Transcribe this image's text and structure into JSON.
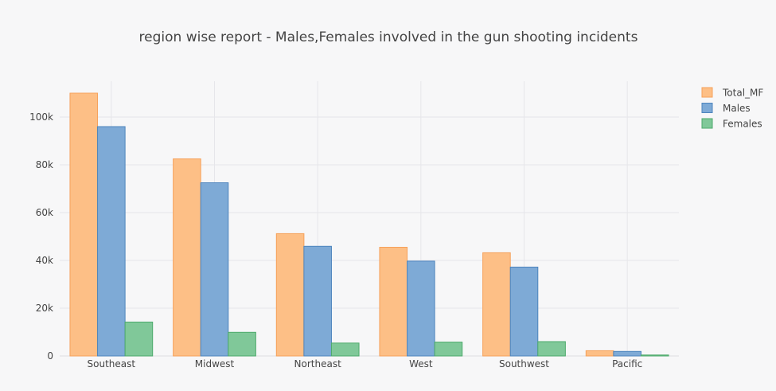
{
  "colors": {
    "background": "#f7f7f8",
    "grid": "#e6e6ea",
    "text": "#444444",
    "series": [
      "#fdbf86",
      "#7eaad6",
      "#80c899"
    ],
    "series_stroke": [
      "#f6a15a",
      "#4d84bd",
      "#4daa6b"
    ]
  },
  "chart_data": {
    "type": "bar",
    "title": "region wise report - Males,Females involved in the gun shooting incidents",
    "xlabel": "",
    "ylabel": "",
    "categories": [
      "Southeast",
      "Midwest",
      "Northeast",
      "West",
      "Southwest",
      "Pacific"
    ],
    "series": [
      {
        "name": "Total_MF",
        "values": [
          110000,
          82500,
          51200,
          45500,
          43200,
          2200
        ]
      },
      {
        "name": "Males",
        "values": [
          96000,
          72500,
          45900,
          39700,
          37200,
          1900
        ]
      },
      {
        "name": "Females",
        "values": [
          14200,
          9900,
          5400,
          5800,
          6000,
          400
        ]
      }
    ],
    "ylim": [
      0,
      115000
    ],
    "yticks": [
      0,
      20000,
      40000,
      60000,
      80000,
      100000
    ],
    "ytick_labels": [
      "0",
      "20k",
      "40k",
      "60k",
      "80k",
      "100k"
    ],
    "grid": true,
    "legend_position": "top-right"
  }
}
